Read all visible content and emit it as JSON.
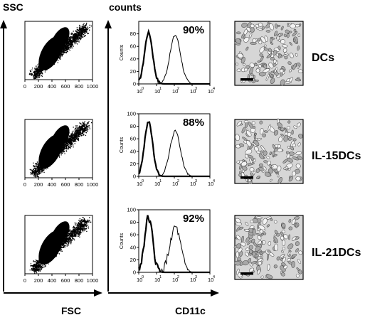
{
  "axes": {
    "scatter_y_label": "SSC",
    "scatter_x_label": "FSC",
    "hist_y_label": "counts",
    "hist_x_label": "CD11c",
    "scatter_ticks": [
      "0",
      "200",
      "400",
      "600",
      "800",
      "1000"
    ],
    "hist_y_ticks": [
      "0",
      "20",
      "40",
      "60",
      "80",
      "100"
    ],
    "hist_y_ticks_row1": [
      "0",
      "20",
      "40",
      "60",
      "80"
    ],
    "hist_panel_ylabel": "Counts",
    "hist_x_ticks": [
      "0",
      "1",
      "2",
      "3",
      "4"
    ]
  },
  "rows": [
    {
      "label": "DCs",
      "percent": "90%",
      "row_id": "dcs"
    },
    {
      "label": "IL-15DCs",
      "percent": "88%",
      "row_id": "il15dcs"
    },
    {
      "label": "IL-21DCs",
      "percent": "92%",
      "row_id": "il21dcs"
    }
  ],
  "chart_data": [
    {
      "type": "scatter",
      "xlabel": "FSC",
      "ylabel": "SSC",
      "xlim": [
        0,
        1000
      ],
      "ylim": [
        0,
        1000
      ],
      "title": "",
      "note": "flow cytometry dot plots (3 panels)"
    },
    {
      "type": "line",
      "xlabel": "CD11c",
      "ylabel": "Counts",
      "x_scale": "log",
      "xlim": [
        1,
        10000
      ],
      "ylim": [
        0,
        100
      ],
      "series": [
        {
          "values": [
            0,
            40,
            80,
            70,
            20,
            5,
            0
          ]
        },
        {
          "values": [
            0,
            5,
            20,
            50,
            80,
            40,
            10,
            0
          ]
        }
      ],
      "percentages": [
        "90%",
        "88%",
        "92%"
      ]
    }
  ]
}
